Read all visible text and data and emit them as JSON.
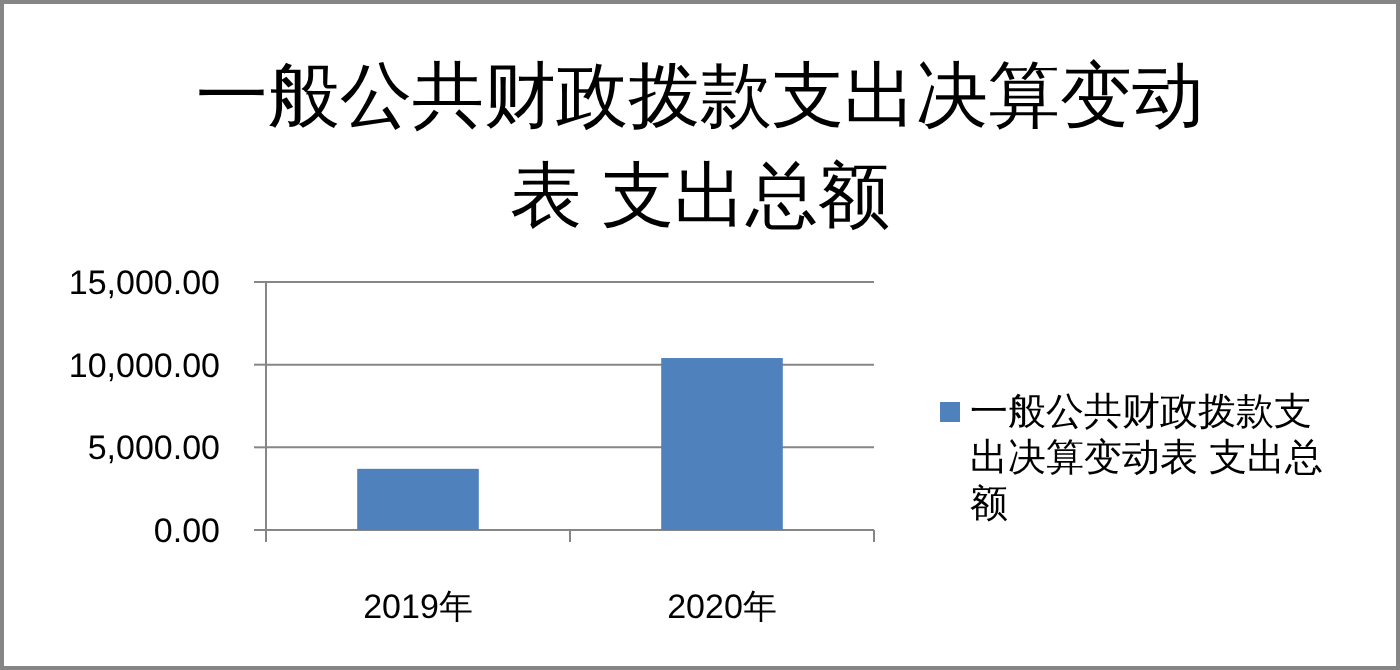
{
  "chart_data": {
    "type": "bar",
    "title": "一般公共财政拨款支出决算变动表 支出总额",
    "categories": [
      "2019年",
      "2020年"
    ],
    "series": [
      {
        "name": "一般公共财政拨款支出决算变动表 支出总额",
        "color": "#4f81bd",
        "values": [
          3700,
          10400
        ]
      }
    ],
    "ylim": [
      0,
      15000
    ],
    "yticks": [
      {
        "value": 0,
        "label": "0.00"
      },
      {
        "value": 5000,
        "label": "5,000.00"
      },
      {
        "value": 10000,
        "label": "10,000.00"
      },
      {
        "value": 15000,
        "label": "15,000.00"
      }
    ],
    "grid": "y",
    "legend": "right"
  }
}
